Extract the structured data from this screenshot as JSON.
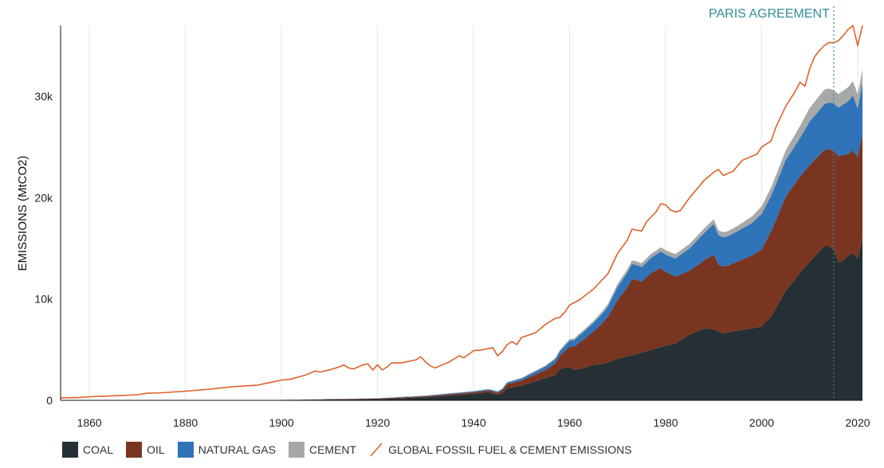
{
  "chart_data": {
    "type": "area",
    "title": "",
    "ylabel": "EMISSIONS (MtCO2)",
    "xlabel": "",
    "xlim": [
      1854,
      2021
    ],
    "ylim": [
      0,
      37000
    ],
    "x_ticks": [
      1860,
      1880,
      1900,
      1920,
      1940,
      1960,
      1980,
      2000,
      2020
    ],
    "x_tick_labels": [
      "1860",
      "1880",
      "1900",
      "1920",
      "1940",
      "1960",
      "1980",
      "2000",
      "2020"
    ],
    "y_ticks": [
      0,
      10000,
      20000,
      30000
    ],
    "y_tick_labels": [
      "0",
      "10k",
      "20k",
      "30k"
    ],
    "grid": "vertical",
    "legend_position": "bottom-left",
    "annotation": {
      "label": "PARIS AGREEMENT",
      "x": 2015
    },
    "stacked_series": [
      {
        "name": "COAL",
        "color": "#263034",
        "points": [
          [
            1854,
            0
          ],
          [
            1899,
            0
          ],
          [
            1900,
            30
          ],
          [
            1910,
            80
          ],
          [
            1920,
            120
          ],
          [
            1930,
            300
          ],
          [
            1940,
            650
          ],
          [
            1943,
            800
          ],
          [
            1944,
            700
          ],
          [
            1945,
            550
          ],
          [
            1946,
            700
          ],
          [
            1947,
            1200
          ],
          [
            1950,
            1450
          ],
          [
            1955,
            2200
          ],
          [
            1957,
            2500
          ],
          [
            1958,
            3100
          ],
          [
            1960,
            3300
          ],
          [
            1961,
            3000
          ],
          [
            1963,
            3200
          ],
          [
            1965,
            3500
          ],
          [
            1967,
            3600
          ],
          [
            1970,
            4100
          ],
          [
            1975,
            4700
          ],
          [
            1980,
            5400
          ],
          [
            1982,
            5600
          ],
          [
            1985,
            6500
          ],
          [
            1988,
            7100
          ],
          [
            1990,
            7000
          ],
          [
            1992,
            6600
          ],
          [
            1995,
            6900
          ],
          [
            1998,
            7100
          ],
          [
            2000,
            7300
          ],
          [
            2002,
            8300
          ],
          [
            2005,
            10800
          ],
          [
            2008,
            12600
          ],
          [
            2010,
            13700
          ],
          [
            2012,
            14700
          ],
          [
            2013,
            15200
          ],
          [
            2014,
            15200
          ],
          [
            2015,
            14900
          ],
          [
            2016,
            13600
          ],
          [
            2017,
            13800
          ],
          [
            2018,
            14300
          ],
          [
            2019,
            14500
          ],
          [
            2020,
            14000
          ],
          [
            2021,
            16000
          ]
        ]
      },
      {
        "name": "OIL",
        "color": "#7a3520",
        "points": [
          [
            1854,
            0
          ],
          [
            1899,
            0
          ],
          [
            1900,
            10
          ],
          [
            1910,
            30
          ],
          [
            1920,
            60
          ],
          [
            1930,
            100
          ],
          [
            1940,
            150
          ],
          [
            1945,
            200
          ],
          [
            1946,
            300
          ],
          [
            1947,
            400
          ],
          [
            1950,
            500
          ],
          [
            1955,
            800
          ],
          [
            1958,
            1300
          ],
          [
            1960,
            2000
          ],
          [
            1962,
            2600
          ],
          [
            1965,
            3300
          ],
          [
            1968,
            4500
          ],
          [
            1970,
            5800
          ],
          [
            1972,
            6800
          ],
          [
            1973,
            7500
          ],
          [
            1974,
            7300
          ],
          [
            1975,
            7000
          ],
          [
            1977,
            7600
          ],
          [
            1979,
            7800
          ],
          [
            1980,
            7300
          ],
          [
            1982,
            6600
          ],
          [
            1985,
            6300
          ],
          [
            1988,
            6700
          ],
          [
            1990,
            7400
          ],
          [
            1991,
            6600
          ],
          [
            1993,
            6600
          ],
          [
            1995,
            6800
          ],
          [
            1998,
            7200
          ],
          [
            2000,
            7600
          ],
          [
            2002,
            8400
          ],
          [
            2005,
            9300
          ],
          [
            2008,
            9500
          ],
          [
            2010,
            9500
          ],
          [
            2013,
            9500
          ],
          [
            2015,
            9700
          ],
          [
            2016,
            10500
          ],
          [
            2017,
            10400
          ],
          [
            2018,
            10000
          ],
          [
            2019,
            10200
          ],
          [
            2020,
            10000
          ],
          [
            2021,
            10300
          ]
        ]
      },
      {
        "name": "NATURAL GAS",
        "color": "#2f73b9",
        "points": [
          [
            1854,
            0
          ],
          [
            1900,
            0
          ],
          [
            1910,
            10
          ],
          [
            1920,
            20
          ],
          [
            1930,
            50
          ],
          [
            1940,
            80
          ],
          [
            1945,
            100
          ],
          [
            1947,
            150
          ],
          [
            1950,
            200
          ],
          [
            1955,
            350
          ],
          [
            1958,
            450
          ],
          [
            1960,
            600
          ],
          [
            1962,
            700
          ],
          [
            1965,
            850
          ],
          [
            1968,
            1000
          ],
          [
            1970,
            1300
          ],
          [
            1973,
            1500
          ],
          [
            1975,
            1450
          ],
          [
            1977,
            1500
          ],
          [
            1980,
            1700
          ],
          [
            1982,
            1800
          ],
          [
            1985,
            2200
          ],
          [
            1988,
            2700
          ],
          [
            1990,
            3000
          ],
          [
            1991,
            2900
          ],
          [
            1993,
            2900
          ],
          [
            1995,
            3000
          ],
          [
            1998,
            3200
          ],
          [
            2000,
            3500
          ],
          [
            2002,
            3500
          ],
          [
            2005,
            3600
          ],
          [
            2008,
            3800
          ],
          [
            2010,
            4300
          ],
          [
            2013,
            4500
          ],
          [
            2015,
            4700
          ],
          [
            2016,
            4800
          ],
          [
            2017,
            5000
          ],
          [
            2018,
            5200
          ],
          [
            2019,
            5400
          ],
          [
            2020,
            4800
          ],
          [
            2021,
            5000
          ]
        ]
      },
      {
        "name": "CEMENT",
        "color": "#a6a9a7",
        "points": [
          [
            1854,
            0
          ],
          [
            1900,
            10
          ],
          [
            1920,
            20
          ],
          [
            1940,
            40
          ],
          [
            1945,
            50
          ],
          [
            1950,
            80
          ],
          [
            1955,
            100
          ],
          [
            1960,
            150
          ],
          [
            1965,
            200
          ],
          [
            1970,
            300
          ],
          [
            1975,
            380
          ],
          [
            1980,
            420
          ],
          [
            1985,
            440
          ],
          [
            1990,
            470
          ],
          [
            1995,
            520
          ],
          [
            2000,
            750
          ],
          [
            2005,
            950
          ],
          [
            2010,
            1350
          ],
          [
            2013,
            1450
          ],
          [
            2015,
            1300
          ],
          [
            2018,
            1400
          ],
          [
            2020,
            1400
          ],
          [
            2021,
            1400
          ]
        ]
      }
    ],
    "line_series": {
      "name": "GLOBAL FOSSIL FUEL & CEMENT EMISSIONS",
      "color": "#e0612a",
      "points": [
        [
          1854,
          250
        ],
        [
          1855,
          250
        ],
        [
          1858,
          280
        ],
        [
          1860,
          350
        ],
        [
          1865,
          450
        ],
        [
          1870,
          550
        ],
        [
          1872,
          700
        ],
        [
          1875,
          750
        ],
        [
          1880,
          900
        ],
        [
          1885,
          1100
        ],
        [
          1888,
          1250
        ],
        [
          1890,
          1350
        ],
        [
          1895,
          1500
        ],
        [
          1899,
          1900
        ],
        [
          1900,
          2000
        ],
        [
          1902,
          2100
        ],
        [
          1905,
          2500
        ],
        [
          1907,
          2900
        ],
        [
          1908,
          2800
        ],
        [
          1910,
          3000
        ],
        [
          1912,
          3300
        ],
        [
          1913,
          3500
        ],
        [
          1914,
          3200
        ],
        [
          1915,
          3100
        ],
        [
          1917,
          3500
        ],
        [
          1918,
          3600
        ],
        [
          1919,
          3000
        ],
        [
          1920,
          3500
        ],
        [
          1921,
          3000
        ],
        [
          1922,
          3300
        ],
        [
          1923,
          3700
        ],
        [
          1925,
          3700
        ],
        [
          1927,
          3900
        ],
        [
          1928,
          4000
        ],
        [
          1929,
          4300
        ],
        [
          1930,
          3800
        ],
        [
          1931,
          3400
        ],
        [
          1932,
          3200
        ],
        [
          1933,
          3400
        ],
        [
          1935,
          3800
        ],
        [
          1937,
          4400
        ],
        [
          1938,
          4200
        ],
        [
          1940,
          4900
        ],
        [
          1942,
          5000
        ],
        [
          1944,
          5200
        ],
        [
          1945,
          4400
        ],
        [
          1946,
          4800
        ],
        [
          1947,
          5500
        ],
        [
          1948,
          5800
        ],
        [
          1949,
          5500
        ],
        [
          1950,
          6200
        ],
        [
          1953,
          6700
        ],
        [
          1955,
          7500
        ],
        [
          1957,
          8100
        ],
        [
          1958,
          8200
        ],
        [
          1959,
          8700
        ],
        [
          1960,
          9400
        ],
        [
          1962,
          9900
        ],
        [
          1965,
          11000
        ],
        [
          1968,
          12500
        ],
        [
          1970,
          14500
        ],
        [
          1972,
          15800
        ],
        [
          1973,
          16900
        ],
        [
          1974,
          16800
        ],
        [
          1975,
          16700
        ],
        [
          1976,
          17600
        ],
        [
          1978,
          18600
        ],
        [
          1979,
          19400
        ],
        [
          1980,
          19300
        ],
        [
          1981,
          18800
        ],
        [
          1982,
          18600
        ],
        [
          1983,
          18700
        ],
        [
          1985,
          20000
        ],
        [
          1988,
          21700
        ],
        [
          1990,
          22500
        ],
        [
          1991,
          22800
        ],
        [
          1992,
          22200
        ],
        [
          1994,
          22600
        ],
        [
          1996,
          23700
        ],
        [
          1998,
          24100
        ],
        [
          1999,
          24300
        ],
        [
          2000,
          25000
        ],
        [
          2002,
          25600
        ],
        [
          2003,
          27000
        ],
        [
          2005,
          29000
        ],
        [
          2007,
          30500
        ],
        [
          2008,
          31400
        ],
        [
          2009,
          31000
        ],
        [
          2010,
          32700
        ],
        [
          2011,
          33900
        ],
        [
          2012,
          34500
        ],
        [
          2013,
          35000
        ],
        [
          2014,
          35300
        ],
        [
          2015,
          35300
        ],
        [
          2016,
          35500
        ],
        [
          2017,
          36000
        ],
        [
          2018,
          36600
        ],
        [
          2019,
          37000
        ],
        [
          2020,
          35000
        ],
        [
          2021,
          37000
        ]
      ]
    }
  },
  "legend": [
    {
      "label": "COAL",
      "color": "#263034",
      "type": "area"
    },
    {
      "label": "OIL",
      "color": "#7a3520",
      "type": "area"
    },
    {
      "label": "NATURAL GAS",
      "color": "#2f73b9",
      "type": "area"
    },
    {
      "label": "CEMENT",
      "color": "#a6a9a7",
      "type": "area"
    },
    {
      "label": "GLOBAL FOSSIL FUEL & CEMENT EMISSIONS",
      "color": "#e0612a",
      "type": "line"
    }
  ],
  "annotation_color": "#2f8f98"
}
